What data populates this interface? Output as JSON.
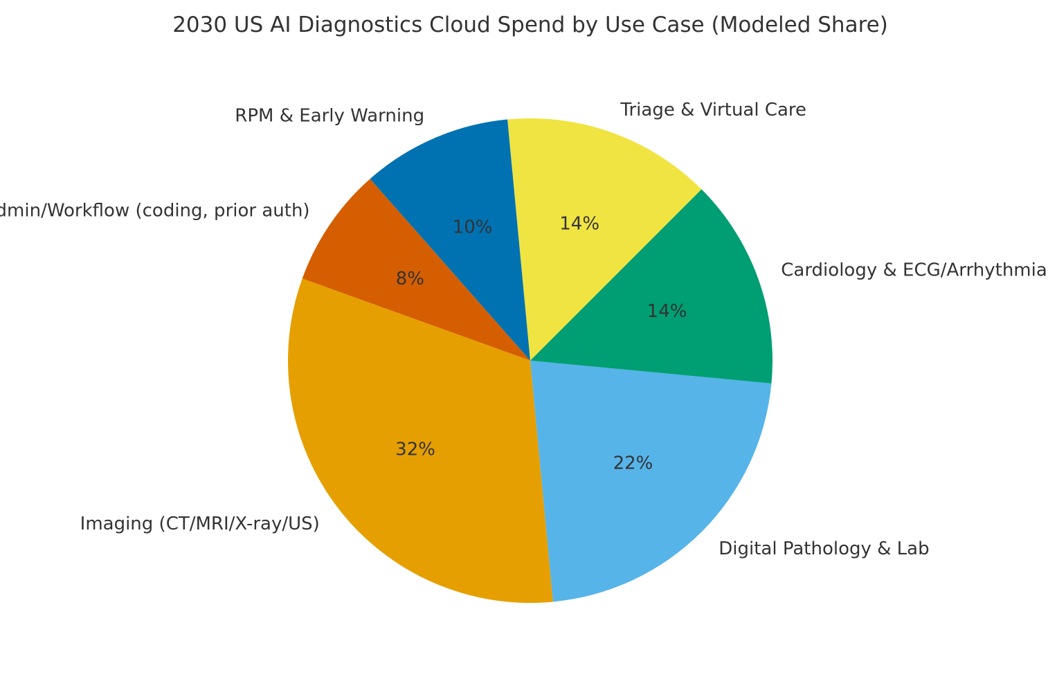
{
  "chart_data": {
    "type": "pie",
    "title": "2030 US AI Diagnostics Cloud Spend by Use Case (Modeled Share)",
    "start_angle_deg": 45,
    "direction": "counterclockwise",
    "slices": [
      {
        "label": "Triage & Virtual Care",
        "value": 14,
        "pct_text": "14%",
        "color": "#F0E442"
      },
      {
        "label": "RPM & Early Warning",
        "value": 10,
        "pct_text": "10%",
        "color": "#0072B2"
      },
      {
        "label": "Admin/Workflow (coding, prior auth)",
        "value": 8,
        "pct_text": "8%",
        "color": "#D55E00"
      },
      {
        "label": "Imaging (CT/MRI/X-ray/US)",
        "value": 32,
        "pct_text": "32%",
        "color": "#E69F00"
      },
      {
        "label": "Digital Pathology & Lab",
        "value": 22,
        "pct_text": "22%",
        "color": "#56B4E9"
      },
      {
        "label": "Cardiology & ECG/Arrhythmia",
        "value": 14,
        "pct_text": "14%",
        "color": "#009E73"
      }
    ]
  }
}
